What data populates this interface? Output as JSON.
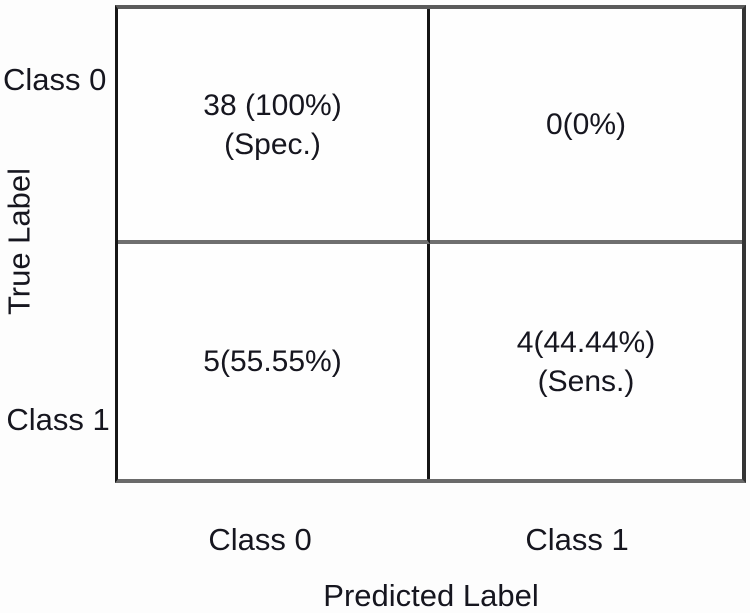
{
  "figure_title": "",
  "chart_data": {
    "type": "heatmap",
    "subtype": "confusion_matrix",
    "title": "",
    "xlabel": "Predicted Label",
    "ylabel": "True Label",
    "x_categories": [
      "Class 0",
      "Class 1"
    ],
    "y_categories": [
      "Class 0",
      "Class 1"
    ],
    "grid": true,
    "cells": [
      {
        "true_label": "Class 0",
        "predicted_label": "Class 0",
        "count": 38,
        "percent": 100,
        "metric": "Spec.",
        "lines": [
          "38 (100%)",
          "(Spec.)"
        ]
      },
      {
        "true_label": "Class 0",
        "predicted_label": "Class 1",
        "count": 0,
        "percent": 0,
        "metric": "",
        "lines": [
          "0(0%)",
          ""
        ]
      },
      {
        "true_label": "Class 1",
        "predicted_label": "Class 0",
        "count": 5,
        "percent": 55.55,
        "metric": "",
        "lines": [
          "5(55.55%)",
          ""
        ]
      },
      {
        "true_label": "Class 1",
        "predicted_label": "Class 1",
        "count": 4,
        "percent": 44.44,
        "metric": "Sens.",
        "lines": [
          "4(44.44%)",
          "(Sens.)"
        ]
      }
    ],
    "colors": {
      "text": "#16161f",
      "outer_border_top": "#5b5b5b",
      "outer_border_left": "#161616",
      "inner_vertical_divider": "#141414",
      "inner_horizontal_divider": "#6f6f6f",
      "background": "#fdfdfd"
    }
  }
}
